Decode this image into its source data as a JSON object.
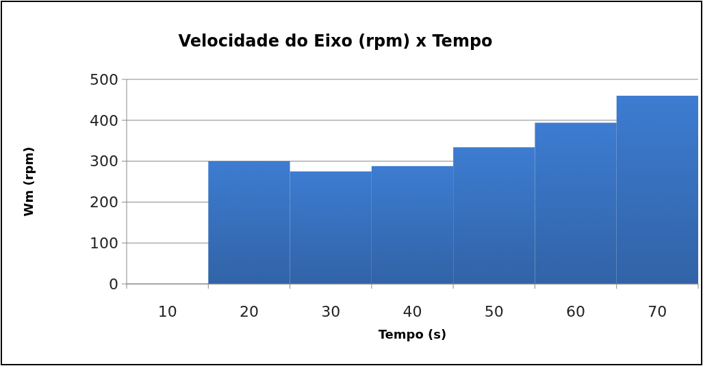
{
  "chart_data": {
    "type": "bar",
    "title": "Velocidade do Eixo (rpm) x Tempo",
    "xlabel": "Tempo (s)",
    "ylabel": "Wm (rpm)",
    "categories": [
      "10",
      "20",
      "30",
      "40",
      "50",
      "60",
      "70"
    ],
    "values": [
      null,
      300,
      275,
      288,
      334,
      394,
      460
    ],
    "color": "#3a76c6",
    "ylim": [
      0,
      500
    ],
    "yticks": [
      0,
      100,
      200,
      300,
      400,
      500
    ],
    "grid": "y"
  }
}
